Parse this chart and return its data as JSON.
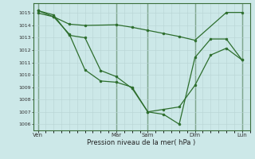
{
  "bg_color": "#cce8e8",
  "line_color": "#2d6e2d",
  "xlabel": "Pression niveau de la mer( hPa )",
  "ylim": [
    1005.5,
    1015.8
  ],
  "xlim": [
    -0.3,
    13.5
  ],
  "yticks": [
    1006,
    1007,
    1008,
    1009,
    1010,
    1011,
    1012,
    1013,
    1014,
    1015
  ],
  "day_labels": [
    "Ven",
    "Mar",
    "Sam",
    "Dim",
    "Lun"
  ],
  "day_x": [
    0,
    5,
    7,
    10,
    13
  ],
  "line1_x": [
    0,
    1,
    2,
    3,
    5,
    6,
    7,
    8,
    9,
    10,
    12,
    13
  ],
  "line1_y": [
    1015.2,
    1014.7,
    1014.1,
    1014.0,
    1014.05,
    1013.85,
    1013.6,
    1013.35,
    1013.1,
    1012.8,
    1015.05,
    1015.05
  ],
  "line2_x": [
    0,
    1,
    2,
    3,
    4,
    5,
    6,
    7,
    8,
    9,
    10,
    11,
    12,
    13
  ],
  "line2_y": [
    1015.0,
    1014.7,
    1013.3,
    1010.4,
    1009.5,
    1009.4,
    1009.0,
    1007.0,
    1006.8,
    1006.0,
    1011.4,
    1012.9,
    1012.9,
    1011.2
  ],
  "line3_x": [
    0,
    1,
    2,
    3,
    4,
    5,
    6,
    7,
    8,
    9,
    10,
    11,
    12,
    13
  ],
  "line3_y": [
    1015.2,
    1014.85,
    1013.2,
    1013.0,
    1010.35,
    1009.85,
    1008.9,
    1007.0,
    1007.2,
    1007.4,
    1009.15,
    1011.6,
    1012.15,
    1011.2
  ]
}
